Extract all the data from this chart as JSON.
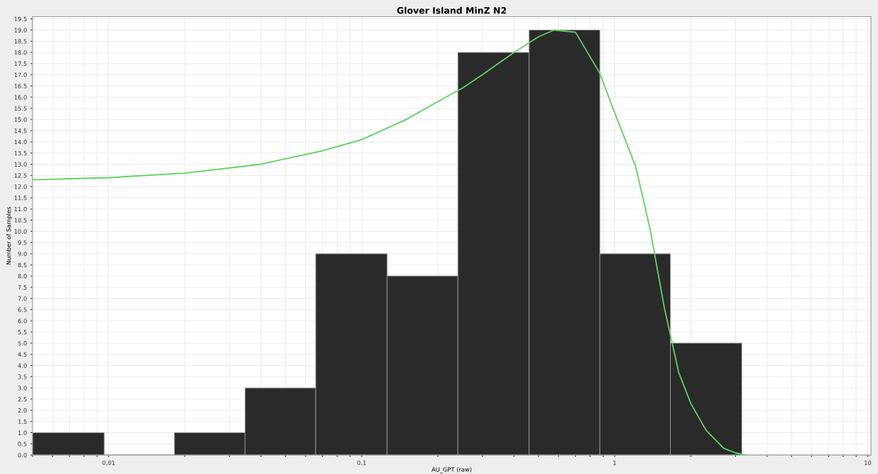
{
  "chart_data": {
    "type": "histogram",
    "title": "Glover Island MinZ N2",
    "xlabel": "AU_GPT (raw)",
    "ylabel": "Number of Samples",
    "bins": [
      0.005,
      0.0096,
      0.0182,
      0.0346,
      0.0658,
      0.126,
      0.24,
      0.459,
      0.874,
      1.66,
      3.18
    ],
    "values": [
      1,
      0,
      1,
      3,
      9,
      8,
      18,
      19,
      9,
      5
    ],
    "color": "#2a2a2a",
    "series": [
      {
        "type": "line",
        "color": "#5fd35f",
        "x": [
          0.005,
          0.01,
          0.02,
          0.04,
          0.07,
          0.1,
          0.15,
          0.2,
          0.25,
          0.3,
          0.4,
          0.5,
          0.576,
          0.7,
          0.87,
          1.0,
          1.21,
          1.38,
          1.57,
          1.79,
          2.0,
          2.3,
          2.7,
          3.0,
          3.3
        ],
        "values": [
          12.3,
          12.4,
          12.6,
          13.0,
          13.6,
          14.1,
          15.0,
          15.8,
          16.4,
          17.0,
          18.0,
          18.7,
          19.0,
          18.9,
          17.1,
          15.3,
          12.9,
          10.1,
          6.6,
          3.7,
          2.3,
          1.1,
          0.3,
          0.1,
          0.0
        ]
      }
    ],
    "log": "x",
    "xlim": [
      0.005,
      10.3
    ],
    "xticks": [
      0.01,
      0.1,
      1,
      10
    ],
    "ylim": [
      0,
      19.6
    ],
    "yticks": [
      {
        "value": 0,
        "label": "0.0"
      },
      {
        "value": 0.5,
        "label": "0.5"
      },
      {
        "value": 1,
        "label": "1.0"
      },
      {
        "value": 1.5,
        "label": "1.5"
      },
      {
        "value": 2,
        "label": "2.0"
      },
      {
        "value": 2.5,
        "label": "2.5"
      },
      {
        "value": 3,
        "label": "3.0"
      },
      {
        "value": 3.5,
        "label": "3.5"
      },
      {
        "value": 4,
        "label": "4.0"
      },
      {
        "value": 4.5,
        "label": "4.5"
      },
      {
        "value": 5,
        "label": "5.0"
      },
      {
        "value": 5.5,
        "label": "5.5"
      },
      {
        "value": 6,
        "label": "6.0"
      },
      {
        "value": 6.5,
        "label": "6.5"
      },
      {
        "value": 7,
        "label": "7.0"
      },
      {
        "value": 7.5,
        "label": "7.5"
      },
      {
        "value": 8,
        "label": "8.0"
      },
      {
        "value": 8.5,
        "label": "8.5"
      },
      {
        "value": 9,
        "label": "9.0"
      },
      {
        "value": 9.5,
        "label": "9.5"
      },
      {
        "value": 10,
        "label": "10.0"
      },
      {
        "value": 10.5,
        "label": "10.5"
      },
      {
        "value": 11,
        "label": "11.0"
      },
      {
        "value": 11.5,
        "label": "11.5"
      },
      {
        "value": 12,
        "label": "12.0"
      },
      {
        "value": 12.5,
        "label": "12.5"
      },
      {
        "value": 13,
        "label": "13.0"
      },
      {
        "value": 13.5,
        "label": "13.5"
      },
      {
        "value": 14,
        "label": "14.0"
      },
      {
        "value": 14.5,
        "label": "14.5"
      },
      {
        "value": 15,
        "label": "15.0"
      },
      {
        "value": 15.5,
        "label": "15.5"
      },
      {
        "value": 16,
        "label": "16.0"
      },
      {
        "value": 16.5,
        "label": "16.5"
      },
      {
        "value": 17,
        "label": "17.0"
      },
      {
        "value": 17.5,
        "label": "17.5"
      },
      {
        "value": 18,
        "label": "18.0"
      },
      {
        "value": 18.5,
        "label": "18.5"
      },
      {
        "value": 19,
        "label": "19.0"
      },
      {
        "value": 19.5,
        "label": "19.5"
      }
    ],
    "grid": true
  }
}
